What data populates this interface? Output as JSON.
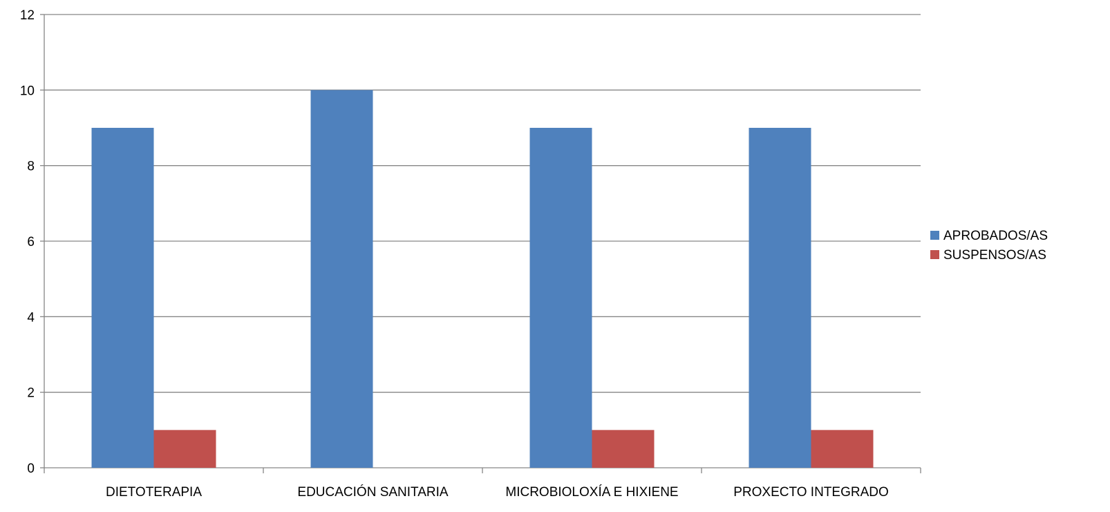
{
  "chart_data": {
    "type": "bar",
    "categories": [
      "DIETOTERAPIA",
      "EDUCACIÓN SANITARIA",
      "MICROBIOLOXÍA E HIXIENE",
      "PROXECTO INTEGRADO"
    ],
    "series": [
      {
        "name": "APROBADOS/AS",
        "values": [
          9,
          10,
          9,
          9
        ],
        "color": "#4F81BD"
      },
      {
        "name": "SUSPENSOS/AS",
        "values": [
          1,
          0,
          1,
          1
        ],
        "color": "#C0504D"
      }
    ],
    "ylim": [
      0,
      12
    ],
    "yticks": [
      0,
      2,
      4,
      6,
      8,
      10,
      12
    ],
    "grid": true,
    "legend_position": "right",
    "title": "",
    "xlabel": "",
    "ylabel": ""
  }
}
